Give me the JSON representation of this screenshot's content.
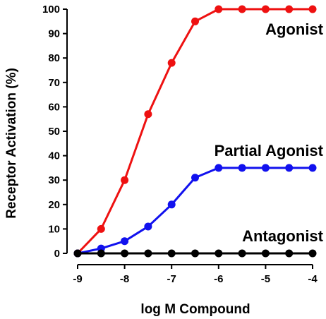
{
  "chart_data": {
    "type": "line",
    "xlabel": "log M Compound",
    "ylabel": "Receptor Activation (%)",
    "xlim": [
      -9,
      -4
    ],
    "ylim": [
      0,
      100
    ],
    "x_ticks": [
      -9,
      -8,
      -7,
      -6,
      -5,
      -4
    ],
    "y_ticks": [
      0,
      10,
      20,
      30,
      40,
      50,
      60,
      70,
      80,
      90,
      100
    ],
    "x_tick_labels": [
      "-9",
      "-8",
      "-7",
      "-6",
      "-5",
      "-4"
    ],
    "y_tick_labels": [
      "0",
      "10",
      "20",
      "30",
      "40",
      "50",
      "60",
      "70",
      "80",
      "90",
      "100"
    ],
    "grid": false,
    "x": [
      -9,
      -8.5,
      -8,
      -7.5,
      -7,
      -6.5,
      -6,
      -5.5,
      -5,
      -4.5,
      -4
    ],
    "series": [
      {
        "name": "Agonist",
        "color": "#ee1111",
        "values": [
          0,
          10,
          30,
          57,
          78,
          95,
          100,
          100,
          100,
          100,
          100
        ]
      },
      {
        "name": "Partial Agonist",
        "color": "#1111ee",
        "values": [
          0,
          2,
          5,
          11,
          20,
          31,
          35,
          35,
          35,
          35,
          35
        ]
      },
      {
        "name": "Antagonist",
        "color": "#000000",
        "values": [
          0,
          0,
          0,
          0,
          0,
          0,
          0,
          0,
          0,
          0,
          0
        ]
      }
    ]
  }
}
